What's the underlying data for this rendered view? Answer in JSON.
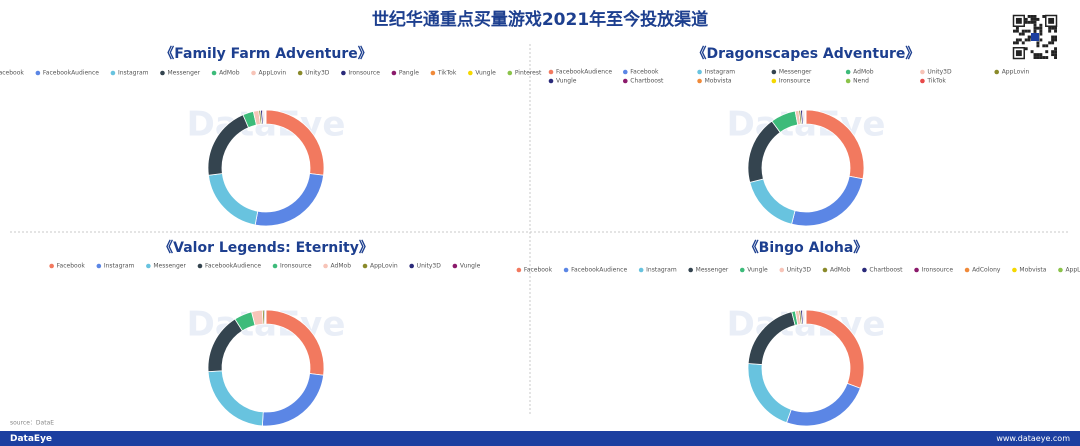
{
  "header": {
    "title": "世纪华通重点买量游戏2021年至今投放渠道"
  },
  "watermark": "DataEye",
  "source": "source：DataE",
  "footer": {
    "brand": "DataEye",
    "url": "www.dataeye.com"
  },
  "chart_data": [
    {
      "type": "pie",
      "title": "《Family Farm Adventure》",
      "categories": [
        "Facebook",
        "FacebookAudience",
        "Instagram",
        "Messenger",
        "AdMob",
        "AppLovin",
        "Unity3D",
        "Ironsource",
        "Pangle",
        "TikTok",
        "Vungle",
        "Pinterest"
      ],
      "values": [
        27,
        26,
        20,
        20.5,
        3,
        1.5,
        0.5,
        0.5,
        0.3,
        0.3,
        0.2,
        0.2
      ],
      "colors": [
        "#f2795f",
        "#5b86e5",
        "#68c3df",
        "#34444f",
        "#3dbb7a",
        "#f7c4b8",
        "#8a8a2a",
        "#2a2a7a",
        "#8b1a6b",
        "#f08a3a",
        "#f5d800",
        "#8bc34a"
      ]
    },
    {
      "type": "pie",
      "title": "《Dragonscapes Adventure》",
      "categories": [
        "FacebookAudience",
        "Facebook",
        "Instagram",
        "Messenger",
        "AdMob",
        "Unity3D",
        "AppLovin",
        "Vungle",
        "Chartboost",
        "Mobvista",
        "Ironsource",
        "Nend",
        "TikTok"
      ],
      "values": [
        28,
        26,
        17,
        19,
        7,
        1,
        0.5,
        0.5,
        0.3,
        0.3,
        0.2,
        0.1,
        0.1
      ],
      "colors": [
        "#f2795f",
        "#5b86e5",
        "#68c3df",
        "#34444f",
        "#3dbb7a",
        "#f7c4b8",
        "#8a8a2a",
        "#2a2a7a",
        "#8b1a6b",
        "#f08a3a",
        "#f5d800",
        "#8bc34a",
        "#e84a4a"
      ]
    },
    {
      "type": "pie",
      "title": "《Valor Legends: Eternity》",
      "categories": [
        "Facebook",
        "Instagram",
        "Messenger",
        "FacebookAudience",
        "Ironsource",
        "AdMob",
        "AppLovin",
        "Unity3D",
        "Vungle"
      ],
      "values": [
        27,
        24,
        23,
        17,
        5,
        3,
        0.5,
        0.3,
        0.2
      ],
      "colors": [
        "#f2795f",
        "#5b86e5",
        "#68c3df",
        "#34444f",
        "#3dbb7a",
        "#f7c4b8",
        "#8a8a2a",
        "#2a2a7a",
        "#8b1a6b"
      ]
    },
    {
      "type": "pie",
      "title": "《Bingo Aloha》",
      "categories": [
        "Facebook",
        "FacebookAudience",
        "Instagram",
        "Messenger",
        "Vungle",
        "Unity3D",
        "AdMob",
        "Chartboost",
        "Ironsource",
        "AdColony",
        "Mobvista",
        "AppLovin"
      ],
      "values": [
        31,
        25,
        21,
        20,
        1,
        1,
        0.5,
        0.5,
        0.3,
        0.3,
        0.2,
        0.2
      ],
      "colors": [
        "#f2795f",
        "#5b86e5",
        "#68c3df",
        "#34444f",
        "#3dbb7a",
        "#f7c4b8",
        "#8a8a2a",
        "#2a2a7a",
        "#8b1a6b",
        "#f08a3a",
        "#f5d800",
        "#8bc34a"
      ]
    }
  ]
}
